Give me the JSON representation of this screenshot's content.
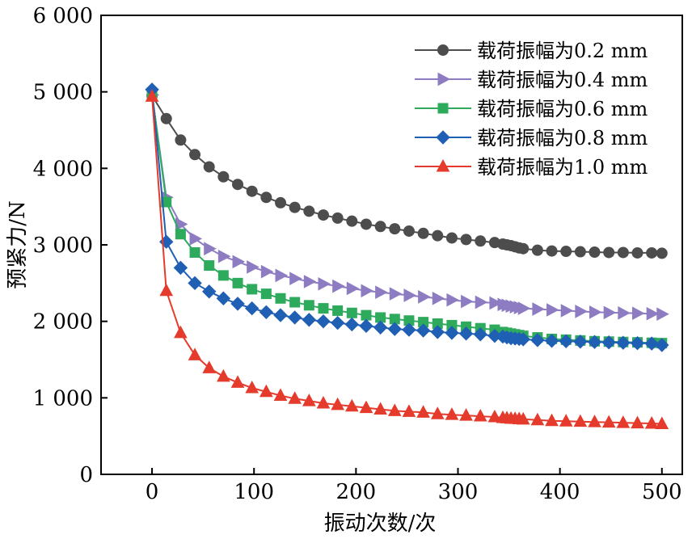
{
  "chart_data": {
    "type": "line",
    "xlabel": "振动次数/次",
    "ylabel": "预紧力/N",
    "xlim": [
      -50,
      520
    ],
    "ylim": [
      0,
      6000
    ],
    "x_ticks": [
      0,
      100,
      200,
      300,
      400,
      500
    ],
    "x_tick_labels": [
      "0",
      "100",
      "200",
      "300",
      "400",
      "500"
    ],
    "y_ticks": [
      0,
      1000,
      2000,
      3000,
      4000,
      5000,
      6000
    ],
    "y_tick_labels": [
      "0",
      "1 000",
      "2 000",
      "3 000",
      "4 000",
      "5 000",
      "6 000"
    ],
    "grid": false,
    "legend_position": "top-right",
    "series": [
      {
        "name": "载荷振幅为0.2 mm",
        "color": "#4d4d4d",
        "marker": "circle",
        "x": [
          0,
          14,
          28,
          42,
          56,
          70,
          84,
          98,
          112,
          126,
          140,
          154,
          168,
          182,
          196,
          210,
          224,
          238,
          252,
          266,
          280,
          294,
          308,
          322,
          336,
          344,
          348,
          352,
          356,
          360,
          364,
          378,
          392,
          406,
          420,
          434,
          448,
          462,
          476,
          490,
          500
        ],
        "y": [
          4950,
          4650,
          4370,
          4180,
          4020,
          3890,
          3790,
          3700,
          3620,
          3550,
          3490,
          3440,
          3390,
          3350,
          3310,
          3270,
          3240,
          3210,
          3180,
          3150,
          3120,
          3090,
          3070,
          3050,
          3030,
          3010,
          3000,
          2990,
          2975,
          2960,
          2950,
          2930,
          2920,
          2915,
          2910,
          2905,
          2900,
          2900,
          2895,
          2895,
          2890
        ]
      },
      {
        "name": "载荷振幅为0.4 mm",
        "color": "#8e7cc3",
        "marker": "triangle-right",
        "x": [
          0,
          14,
          28,
          42,
          56,
          70,
          84,
          98,
          112,
          126,
          140,
          154,
          168,
          182,
          196,
          210,
          224,
          238,
          252,
          266,
          280,
          294,
          308,
          322,
          336,
          344,
          348,
          352,
          356,
          360,
          364,
          378,
          392,
          406,
          420,
          434,
          448,
          462,
          476,
          490,
          500
        ],
        "y": [
          4960,
          3620,
          3270,
          3080,
          2950,
          2850,
          2780,
          2710,
          2650,
          2600,
          2560,
          2520,
          2490,
          2460,
          2430,
          2400,
          2380,
          2360,
          2340,
          2320,
          2300,
          2280,
          2260,
          2250,
          2240,
          2220,
          2210,
          2200,
          2190,
          2180,
          2170,
          2160,
          2150,
          2140,
          2130,
          2120,
          2115,
          2110,
          2105,
          2100,
          2095
        ]
      },
      {
        "name": "载荷振幅为0.6 mm",
        "color": "#2eaa5c",
        "marker": "square",
        "x": [
          0,
          14,
          28,
          42,
          56,
          70,
          84,
          98,
          112,
          126,
          140,
          154,
          168,
          182,
          196,
          210,
          224,
          238,
          252,
          266,
          280,
          294,
          308,
          322,
          336,
          344,
          348,
          352,
          356,
          360,
          364,
          378,
          392,
          406,
          420,
          434,
          448,
          462,
          476,
          490,
          500
        ],
        "y": [
          4980,
          3560,
          3140,
          2900,
          2730,
          2600,
          2500,
          2420,
          2360,
          2300,
          2250,
          2210,
          2170,
          2140,
          2110,
          2080,
          2050,
          2030,
          2010,
          1990,
          1970,
          1950,
          1930,
          1910,
          1890,
          1860,
          1850,
          1840,
          1830,
          1820,
          1810,
          1790,
          1770,
          1760,
          1750,
          1740,
          1735,
          1730,
          1725,
          1720,
          1715
        ]
      },
      {
        "name": "载荷振幅为0.8 mm",
        "color": "#1f5fb4",
        "marker": "diamond",
        "x": [
          0,
          14,
          28,
          42,
          56,
          70,
          84,
          98,
          112,
          126,
          140,
          154,
          168,
          182,
          196,
          210,
          224,
          238,
          252,
          266,
          280,
          294,
          308,
          322,
          336,
          344,
          348,
          352,
          356,
          360,
          364,
          378,
          392,
          406,
          420,
          434,
          448,
          462,
          476,
          490,
          500
        ],
        "y": [
          5030,
          3040,
          2700,
          2500,
          2390,
          2300,
          2230,
          2170,
          2120,
          2080,
          2050,
          2020,
          2000,
          1980,
          1960,
          1940,
          1920,
          1900,
          1890,
          1880,
          1860,
          1850,
          1840,
          1830,
          1810,
          1800,
          1790,
          1780,
          1775,
          1770,
          1765,
          1755,
          1745,
          1740,
          1735,
          1730,
          1725,
          1720,
          1715,
          1710,
          1690
        ]
      },
      {
        "name": "载荷振幅为1.0 mm",
        "color": "#e53b2c",
        "marker": "triangle-up",
        "x": [
          0,
          14,
          28,
          42,
          56,
          70,
          84,
          98,
          112,
          126,
          140,
          154,
          168,
          182,
          196,
          210,
          224,
          238,
          252,
          266,
          280,
          294,
          308,
          322,
          336,
          344,
          348,
          352,
          356,
          360,
          364,
          378,
          392,
          406,
          420,
          434,
          448,
          462,
          476,
          490,
          500
        ],
        "y": [
          4940,
          2400,
          1850,
          1560,
          1390,
          1280,
          1200,
          1130,
          1080,
          1030,
          990,
          960,
          930,
          910,
          890,
          870,
          850,
          830,
          820,
          810,
          790,
          780,
          770,
          760,
          750,
          740,
          735,
          730,
          727,
          724,
          720,
          710,
          700,
          695,
          690,
          685,
          680,
          675,
          670,
          665,
          660
        ]
      }
    ]
  }
}
